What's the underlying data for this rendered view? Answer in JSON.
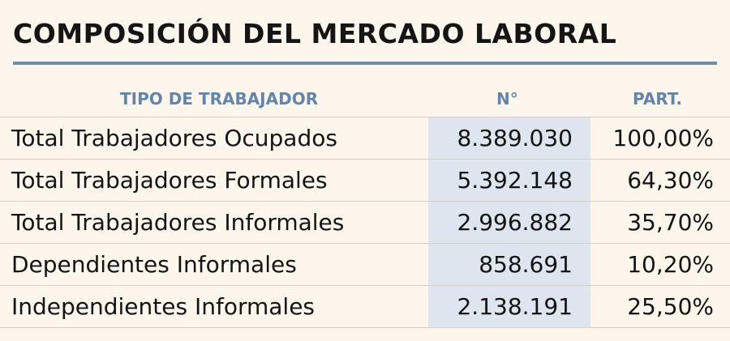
{
  "title": "COMPOSICIÓN DEL MERCADO LABORAL",
  "table": {
    "headers": {
      "tipo": "TIPO DE TRABAJADOR",
      "numero": "N°",
      "participacion": "PART."
    },
    "rows": [
      {
        "label": "Total Trabajadores Ocupados",
        "numero": "8.389.030",
        "participacion": "100,00%"
      },
      {
        "label": "Total Trabajadores Formales",
        "numero": "5.392.148",
        "participacion": "64,30%"
      },
      {
        "label": "Total Trabajadores Informales",
        "numero": "2.996.882",
        "participacion": "35,70%"
      },
      {
        "label": "Dependientes Informales",
        "numero": "858.691",
        "participacion": "10,20%"
      },
      {
        "label": "Independientes Informales",
        "numero": "2.138.191",
        "participacion": "25,50%"
      }
    ]
  },
  "colors": {
    "background": "#fdf6ec",
    "accent": "#6f8cad",
    "header_text": "#6485ab",
    "number_column_bg": "#dde5ef"
  }
}
